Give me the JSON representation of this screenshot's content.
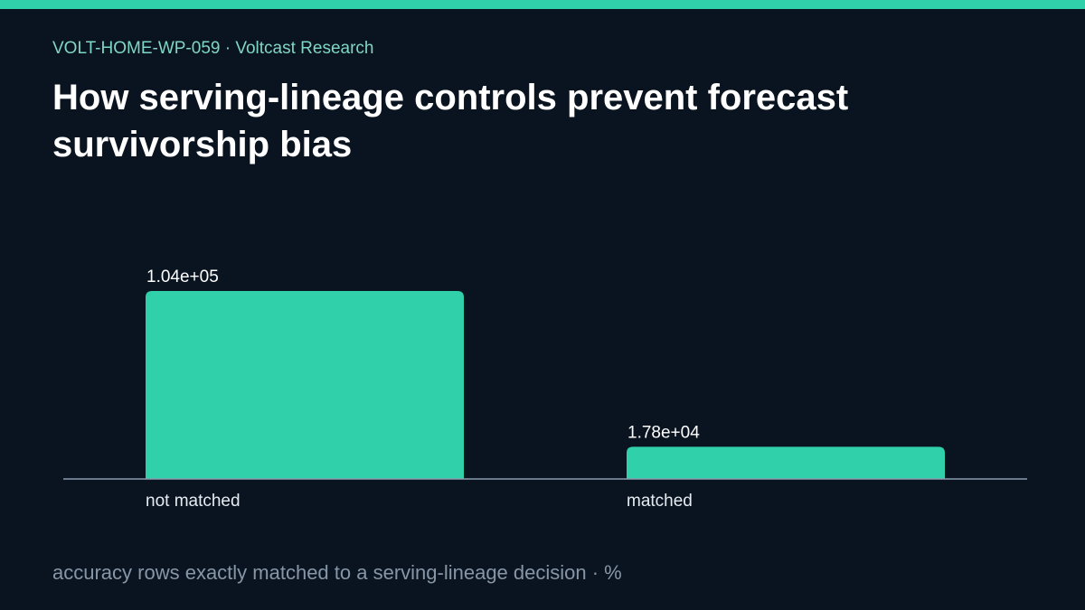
{
  "header": {
    "kicker": "VOLT-HOME-WP-059 · Voltcast Research",
    "title": "How serving-lineage controls prevent forecast survivorship bias"
  },
  "footer": {
    "caption": "accuracy rows exactly matched to a serving-lineage decision · %"
  },
  "colors": {
    "accent": "#2fd0aa",
    "background": "#0a1420",
    "axis": "#8a9bb0",
    "caption": "#8796a6",
    "kicker": "#7fd6c2"
  },
  "chart_data": {
    "type": "bar",
    "categories": [
      "not matched",
      "matched"
    ],
    "values": [
      104000,
      17800
    ],
    "value_labels": [
      "1.04e+05",
      "1.78e+04"
    ],
    "title": "",
    "xlabel": "",
    "ylabel": "",
    "ylim": [
      0,
      120000
    ],
    "grid": false,
    "legend": "none"
  }
}
